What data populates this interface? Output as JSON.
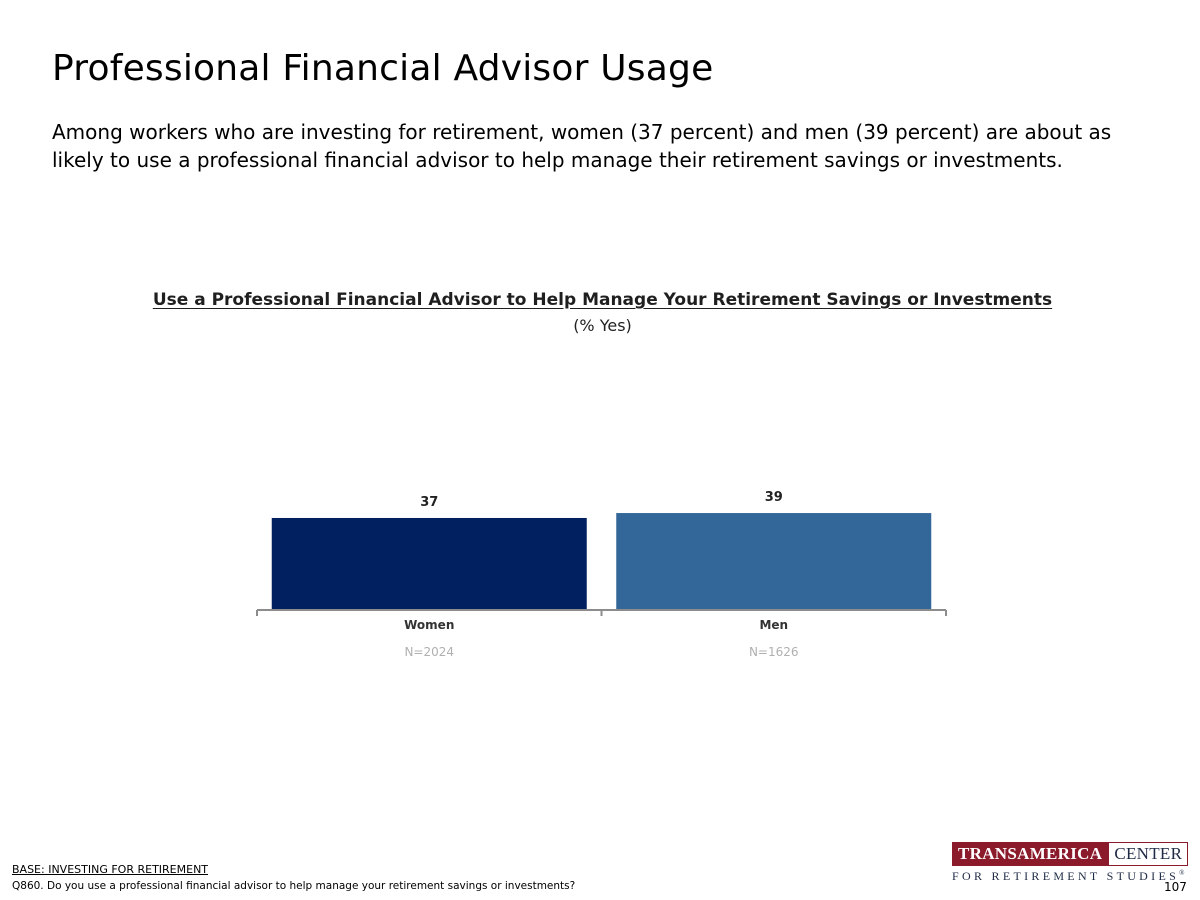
{
  "page": {
    "title": "Professional Financial Advisor Usage",
    "intro": "Among workers who are investing for retirement, women (37 percent) and men (39 percent) are about as likely to use a professional financial advisor to help manage their retirement savings or investments.",
    "page_number": "107"
  },
  "footer": {
    "base": "BASE: INVESTING FOR RETIREMENT",
    "question": "Q860. Do you use a professional financial advisor to help manage your retirement savings or investments?"
  },
  "logo": {
    "word1": "TRANSAMERICA",
    "word2": "CENTER",
    "tagline": "FOR RETIREMENT STUDIES",
    "mark": "®"
  },
  "chart_data": {
    "type": "bar",
    "title": "Use a Professional Financial Advisor to Help Manage Your Retirement Savings or Investments",
    "subtitle": "(% Yes)",
    "categories": [
      "Women",
      "Men"
    ],
    "sample_sizes": [
      "N=2024",
      "N=1626"
    ],
    "values": [
      37,
      39
    ],
    "colors": [
      "#002060",
      "#336699"
    ],
    "ylim": [
      0,
      100
    ],
    "grid": false
  }
}
